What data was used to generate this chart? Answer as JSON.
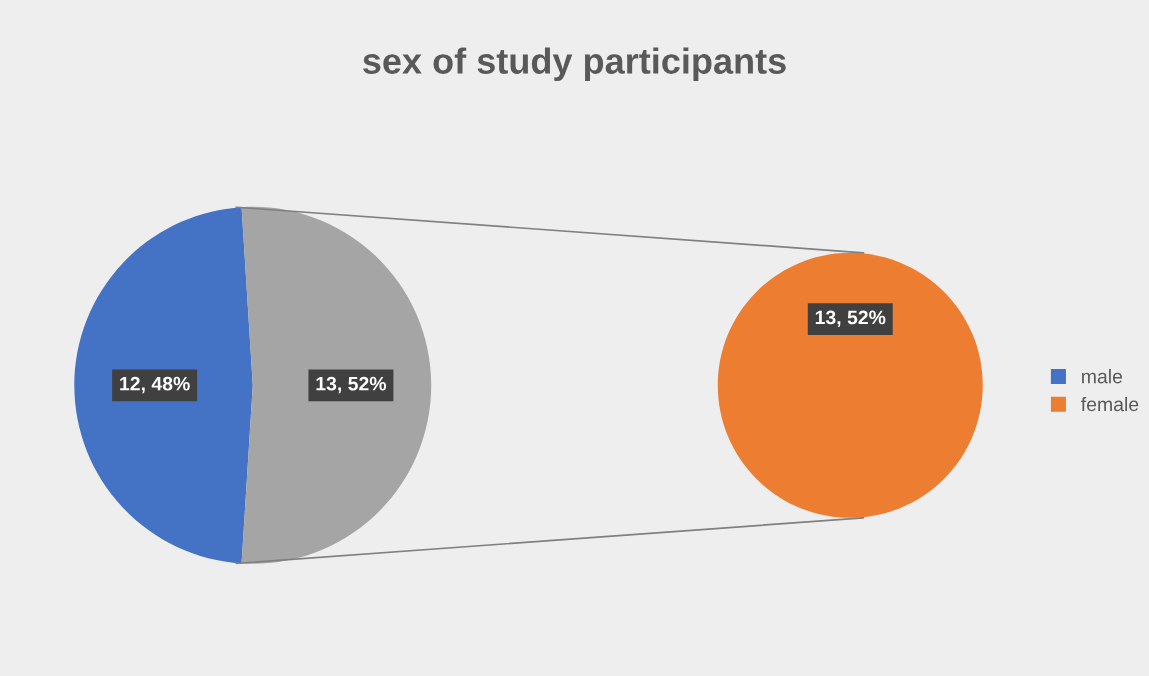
{
  "chart_data": [
    {
      "type": "pie",
      "title": "sex of study participants",
      "categories": [
        "male",
        null
      ],
      "values": [
        12,
        13
      ],
      "colors": [
        "#4472c4",
        "#a5a5a5"
      ],
      "value_labels": [
        "12, 48%",
        "13, 52%"
      ]
    },
    {
      "type": "pie",
      "categories": [
        "female"
      ],
      "values": [
        13
      ],
      "colors": [
        "#ed7d31"
      ],
      "value_labels": [
        "13, 52%"
      ],
      "legend": "right"
    }
  ]
}
